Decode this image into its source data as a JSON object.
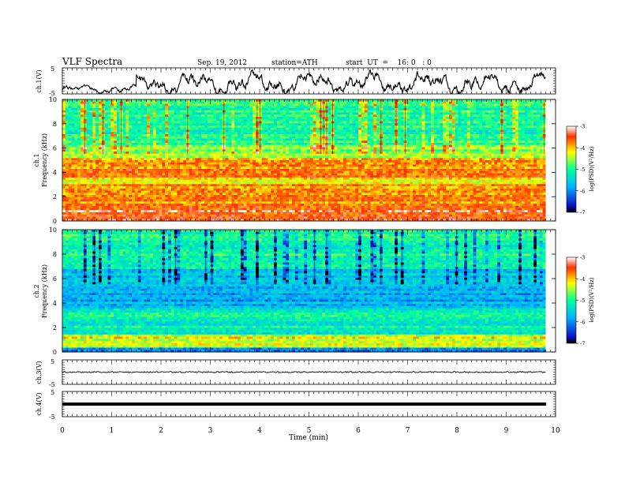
{
  "header": {
    "title": "VLF  Spectra",
    "date": "Sep. 19, 2012",
    "station": "station=ATH",
    "start": "start  UT  =    16: 0   : 0"
  },
  "xaxis": {
    "label": "Time  (min)",
    "range": [
      0,
      10
    ],
    "ticks": [
      "0",
      "1",
      "2",
      "3",
      "4",
      "5",
      "6",
      "7",
      "8",
      "9",
      "10"
    ],
    "data_end_min": 9.8
  },
  "panels": {
    "ch1": {
      "ylabel": "ch.1(V)",
      "ticks": [
        "5",
        "-5"
      ],
      "range": [
        -5,
        5
      ]
    },
    "spec1": {
      "ylabel_top": "ch.1",
      "ylabel": "Frequency  (kHz)",
      "ticks": [
        "0",
        "2",
        "4",
        "6",
        "8",
        "10"
      ],
      "range": [
        0,
        10
      ]
    },
    "spec2": {
      "ylabel_top": "ch.2",
      "ylabel": "Frequency  (kHz)",
      "ticks": [
        "0",
        "2",
        "4",
        "6",
        "8",
        "10"
      ],
      "range": [
        0,
        10
      ]
    },
    "ch3": {
      "ylabel": "ch.3(V)",
      "ticks": [
        "5",
        "-5"
      ],
      "range": [
        -5,
        5
      ],
      "level": 0
    },
    "ch4": {
      "ylabel": "ch.4(V)",
      "ticks": [
        "5",
        "-5"
      ],
      "range": [
        -5,
        5
      ],
      "level": 0
    }
  },
  "colorbar": {
    "label": "log(PSD)(V²/Hz)",
    "ticks": [
      "-3",
      "-4",
      "-5",
      "-6",
      "-7"
    ],
    "range": [
      -7,
      -3
    ],
    "colors": [
      "#000000",
      "#1010c8",
      "#00b4ff",
      "#00ff9c",
      "#ffff00",
      "#ff3000",
      "#ffffff"
    ]
  },
  "chart_data": {
    "type": "heatmap",
    "x_unit": "min",
    "y_unit": "kHz",
    "spectrogram_ch1_band_levels": [
      {
        "f": [
          0.0,
          0.3
        ],
        "log_psd": -3.3
      },
      {
        "f": [
          0.3,
          1.2
        ],
        "log_psd": -3.5
      },
      {
        "f": [
          1.2,
          3.0
        ],
        "log_psd": -3.8
      },
      {
        "f": [
          3.0,
          3.6
        ],
        "log_psd": -4.2
      },
      {
        "f": [
          3.6,
          5.2
        ],
        "log_psd": -3.8
      },
      {
        "f": [
          5.2,
          6.2
        ],
        "log_psd": -4.6
      },
      {
        "f": [
          6.2,
          10.0
        ],
        "log_psd": -5.0
      }
    ],
    "spectrogram_ch2_band_levels": [
      {
        "f": [
          0.0,
          0.3
        ],
        "log_psd": -6.0
      },
      {
        "f": [
          0.3,
          1.5
        ],
        "log_psd": -4.3
      },
      {
        "f": [
          1.5,
          3.5
        ],
        "log_psd": -5.2
      },
      {
        "f": [
          3.5,
          5.0
        ],
        "log_psd": -5.8
      },
      {
        "f": [
          5.0,
          6.8
        ],
        "log_psd": -5.6
      },
      {
        "f": [
          6.8,
          10.0
        ],
        "log_psd": -5.0
      }
    ]
  }
}
